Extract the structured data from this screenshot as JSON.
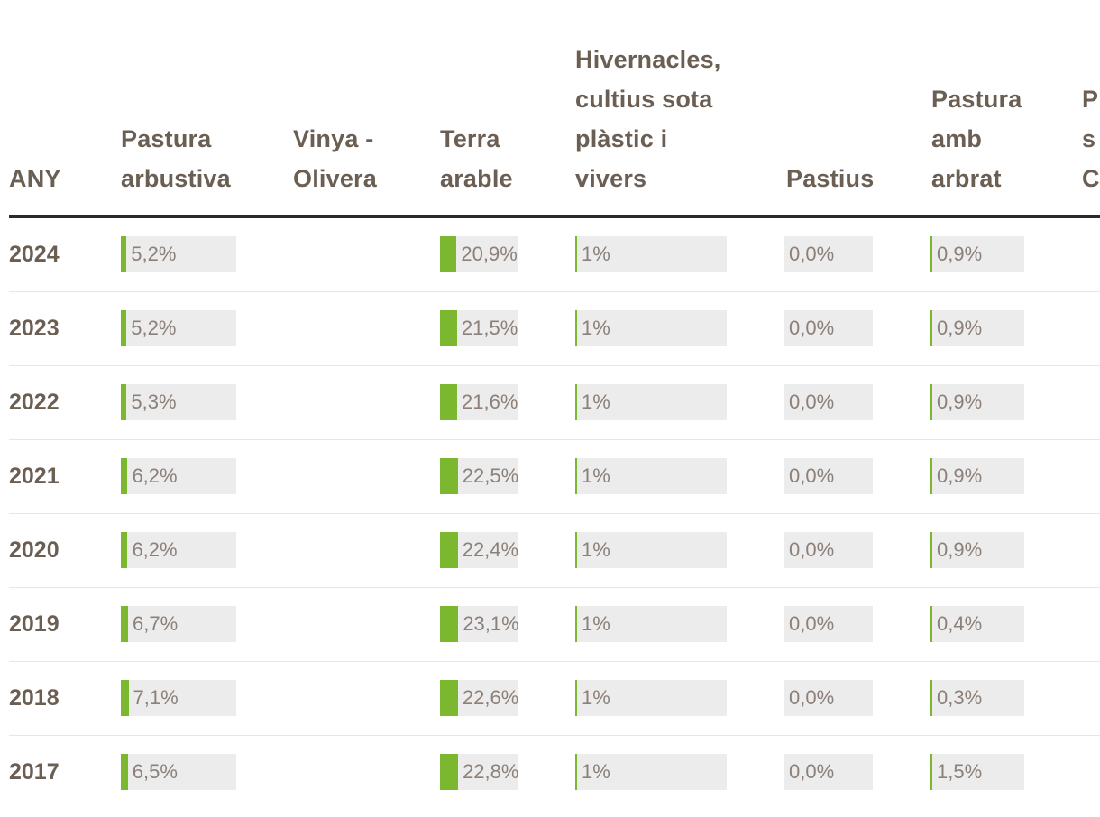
{
  "table": {
    "year_header": "ANY",
    "columns": [
      {
        "label_lines": [
          "Pastura",
          "arbustiva"
        ]
      },
      {
        "label_lines": [
          "Vinya -",
          "Olivera"
        ]
      },
      {
        "label_lines": [
          "Terra",
          "arable"
        ]
      },
      {
        "label_lines": [
          "Hivernacles,",
          "cultius sota",
          "plàstic i",
          "vivers"
        ]
      },
      {
        "label_lines": [
          "Pastius"
        ]
      },
      {
        "label_lines": [
          "Pastura",
          "amb",
          "arbrat"
        ]
      },
      {
        "label_lines": [
          "P",
          "s",
          "C"
        ]
      }
    ]
  },
  "chart_data": {
    "type": "table",
    "title": "",
    "columns": [
      "ANY",
      "Pastura arbustiva",
      "Vinya - Olivera",
      "Terra arable",
      "Hivernacles, cultius sota plàstic i vivers",
      "Pastius",
      "Pastura amb arbrat"
    ],
    "rows": [
      {
        "year": "2024",
        "cells": [
          "5,2%",
          "",
          "20,9%",
          "1%",
          "0,0%",
          "0,9%"
        ],
        "values": [
          5.2,
          null,
          20.9,
          1,
          0.0,
          0.9
        ]
      },
      {
        "year": "2023",
        "cells": [
          "5,2%",
          "",
          "21,5%",
          "1%",
          "0,0%",
          "0,9%"
        ],
        "values": [
          5.2,
          null,
          21.5,
          1,
          0.0,
          0.9
        ]
      },
      {
        "year": "2022",
        "cells": [
          "5,3%",
          "",
          "21,6%",
          "1%",
          "0,0%",
          "0,9%"
        ],
        "values": [
          5.3,
          null,
          21.6,
          1,
          0.0,
          0.9
        ]
      },
      {
        "year": "2021",
        "cells": [
          "6,2%",
          "",
          "22,5%",
          "1%",
          "0,0%",
          "0,9%"
        ],
        "values": [
          6.2,
          null,
          22.5,
          1,
          0.0,
          0.9
        ]
      },
      {
        "year": "2020",
        "cells": [
          "6,2%",
          "",
          "22,4%",
          "1%",
          "0,0%",
          "0,9%"
        ],
        "values": [
          6.2,
          null,
          22.4,
          1,
          0.0,
          0.9
        ]
      },
      {
        "year": "2019",
        "cells": [
          "6,7%",
          "",
          "23,1%",
          "1%",
          "0,0%",
          "0,4%"
        ],
        "values": [
          6.7,
          null,
          23.1,
          1,
          0.0,
          0.4
        ]
      },
      {
        "year": "2018",
        "cells": [
          "7,1%",
          "",
          "22,6%",
          "1%",
          "0,0%",
          "0,3%"
        ],
        "values": [
          7.1,
          null,
          22.6,
          1,
          0.0,
          0.3
        ]
      },
      {
        "year": "2017",
        "cells": [
          "6,5%",
          "",
          "22,8%",
          "1%",
          "0,0%",
          "1,5%"
        ],
        "values": [
          6.5,
          null,
          22.8,
          1,
          0.0,
          1.5
        ]
      }
    ],
    "bar_color": "#7cb82f",
    "track_color": "#ececec"
  }
}
